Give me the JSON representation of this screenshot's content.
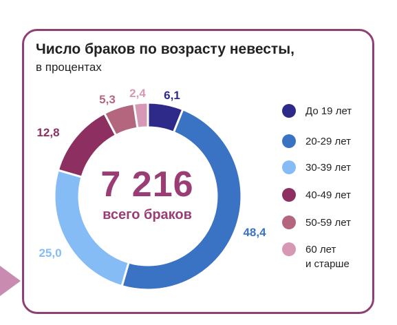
{
  "chart_data": {
    "type": "pie",
    "title": "Число браков по возрасту невесты,",
    "subtitle": "в процентах",
    "total_value": "7 216",
    "total_caption": "всего браков",
    "series": [
      {
        "name": "До 19 лет",
        "value": 6.1,
        "label": "6,1",
        "color": "#2e2a8a"
      },
      {
        "name": "20-29 лет",
        "value": 48.4,
        "label": "48,4",
        "color": "#3a72c4"
      },
      {
        "name": "30-39 лет",
        "value": 25.0,
        "label": "25,0",
        "color": "#85bcf5"
      },
      {
        "name": "40-49 лет",
        "value": 12.8,
        "label": "12,8",
        "color": "#8e2f62"
      },
      {
        "name": "50-59 лет",
        "value": 5.3,
        "label": "5,3",
        "color": "#b3667e"
      },
      {
        "name": "60 лет",
        "name_line2": "и старше",
        "value": 2.4,
        "label": "2,4",
        "color": "#d698b4"
      }
    ],
    "legend_position": "right"
  }
}
